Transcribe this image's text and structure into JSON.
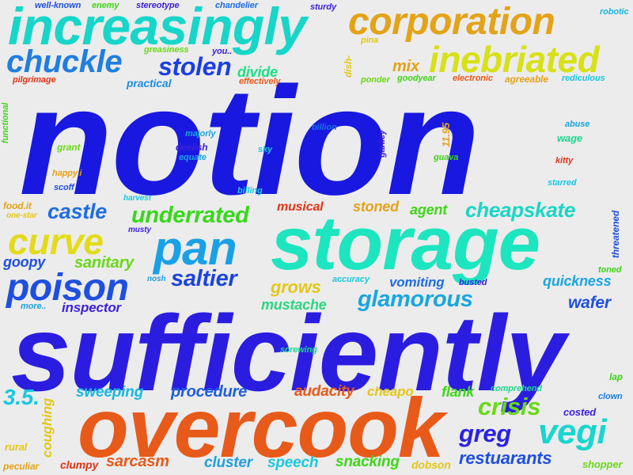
{
  "words": [
    {
      "text": "notion",
      "color": "#1818e0"
    },
    {
      "text": "sufficiently",
      "color": "#2a1de0"
    },
    {
      "text": "storage",
      "color": "#1de5bf"
    },
    {
      "text": "overcook",
      "color": "#e85a1a"
    },
    {
      "text": "increasingly",
      "color": "#17d6c9"
    },
    {
      "text": "corporation",
      "color": "#e3a318"
    },
    {
      "text": "inebriated",
      "color": "#d8e018"
    },
    {
      "text": "chuckle",
      "color": "#1f7ee0"
    },
    {
      "text": "stolen",
      "color": "#1c3fe0"
    },
    {
      "text": "pan",
      "color": "#1aa0e6"
    },
    {
      "text": "poison",
      "color": "#1f4fe0"
    },
    {
      "text": "curve",
      "color": "#e3db1a"
    },
    {
      "text": "underrated",
      "color": "#36d81a"
    },
    {
      "text": "castle",
      "color": "#1f6de0"
    },
    {
      "text": "cheapskate",
      "color": "#18d6c6"
    },
    {
      "text": "glamorous",
      "color": "#19a6e0"
    },
    {
      "text": "saltier",
      "color": "#1c44e0"
    },
    {
      "text": "vegi",
      "color": "#18d6cf"
    },
    {
      "text": "crisis",
      "color": "#6ad819"
    },
    {
      "text": "greg",
      "color": "#2a22e0"
    },
    {
      "text": "restuarants",
      "color": "#1f4fe0"
    },
    {
      "text": "procedure",
      "color": "#1f5fe0"
    },
    {
      "text": "sarcasm",
      "color": "#e85a1a"
    },
    {
      "text": "divide",
      "color": "#1cdf82"
    },
    {
      "text": "practical",
      "color": "#1f8ee0"
    },
    {
      "text": "mix",
      "color": "#e3a318"
    },
    {
      "text": "musical",
      "color": "#e03418"
    },
    {
      "text": "stoned",
      "color": "#e3a318"
    },
    {
      "text": "agent",
      "color": "#3fd61a"
    },
    {
      "text": "sanitary",
      "color": "#6ad819"
    },
    {
      "text": "goopy",
      "color": "#1f4fe0"
    },
    {
      "text": "grows",
      "color": "#e3c71a"
    },
    {
      "text": "mustache",
      "color": "#2bd680"
    },
    {
      "text": "inspector",
      "color": "#3f1fd8"
    },
    {
      "text": "vomiting",
      "color": "#1f6de0"
    },
    {
      "text": "quickness",
      "color": "#19a6e0"
    },
    {
      "text": "wafer",
      "color": "#1f4fe0"
    },
    {
      "text": "audacity",
      "color": "#e85a1a"
    },
    {
      "text": "sweeping",
      "color": "#19b8e0"
    },
    {
      "text": "cheapo",
      "color": "#e3c71a"
    },
    {
      "text": "flank",
      "color": "#3fd61a"
    },
    {
      "text": "cluster",
      "color": "#1fa0e0"
    },
    {
      "text": "speech",
      "color": "#19c8e0"
    },
    {
      "text": "snacking",
      "color": "#3fd61a"
    },
    {
      "text": "dobson",
      "color": "#e3c71a"
    },
    {
      "text": "clumpy",
      "color": "#e03418"
    },
    {
      "text": "rural",
      "color": "#e3c71a"
    },
    {
      "text": "peculiar",
      "color": "#e3a318"
    },
    {
      "text": "shopper",
      "color": "#6ad819"
    },
    {
      "text": "costed",
      "color": "#3f1fd8"
    },
    {
      "text": "clown",
      "color": "#1f7ee0"
    },
    {
      "text": "lap",
      "color": "#3fd61a"
    },
    {
      "text": "comprehend",
      "color": "#1cd68f"
    },
    {
      "text": "screwing",
      "color": "#1cd68f"
    },
    {
      "text": "3.5.",
      "color": "#19c8e0"
    },
    {
      "text": "coughing",
      "color": "#e3c71a"
    },
    {
      "text": "well-known",
      "color": "#1f4fe0"
    },
    {
      "text": "enemy",
      "color": "#3fd61a"
    },
    {
      "text": "stereotype",
      "color": "#3f1fd8"
    },
    {
      "text": "chandelier",
      "color": "#1f6de0"
    },
    {
      "text": "sturdy",
      "color": "#3f1fd8"
    },
    {
      "text": "robotic",
      "color": "#19b8e0"
    },
    {
      "text": "greasiness",
      "color": "#6ad819"
    },
    {
      "text": "you..",
      "color": "#3f1fd8"
    },
    {
      "text": "pina",
      "color": "#e3c71a"
    },
    {
      "text": "effectively",
      "color": "#e85a1a"
    },
    {
      "text": "pilgrimage",
      "color": "#e03418"
    },
    {
      "text": "ponder",
      "color": "#6ad819"
    },
    {
      "text": "goodyear",
      "color": "#3fd61a"
    },
    {
      "text": "electronic",
      "color": "#e85a1a"
    },
    {
      "text": "agreeable",
      "color": "#e3a318"
    },
    {
      "text": "rediculous",
      "color": "#19c8e0"
    },
    {
      "text": "dish-",
      "color": "#e3c71a"
    },
    {
      "text": "functional",
      "color": "#3fd61a"
    },
    {
      "text": "billion",
      "color": "#1f6de0"
    },
    {
      "text": "garlicy",
      "color": "#3f1fd8"
    },
    {
      "text": "11.95",
      "color": "#e3a318"
    },
    {
      "text": "abuse",
      "color": "#19a6e0"
    },
    {
      "text": "majorly",
      "color": "#19a6e0"
    },
    {
      "text": "deelish",
      "color": "#3f1fd8"
    },
    {
      "text": "equate",
      "color": "#19a6e0"
    },
    {
      "text": "sky",
      "color": "#19c8e0"
    },
    {
      "text": "grant",
      "color": "#6ad819"
    },
    {
      "text": "guava",
      "color": "#3fd61a"
    },
    {
      "text": "wage",
      "color": "#1cd68f"
    },
    {
      "text": "kitty",
      "color": "#e03418"
    },
    {
      "text": "happy.i",
      "color": "#e3a318"
    },
    {
      "text": "scoff",
      "color": "#1f4fe0"
    },
    {
      "text": "billing",
      "color": "#19c8e0"
    },
    {
      "text": "starred",
      "color": "#19c8e0"
    },
    {
      "text": "harvest",
      "color": "#19c8e0"
    },
    {
      "text": "food.it",
      "color": "#e3a318"
    },
    {
      "text": "one-star",
      "color": "#e3c71a"
    },
    {
      "text": "musty",
      "color": "#3f1fd8"
    },
    {
      "text": "threatened",
      "color": "#1f4fe0"
    },
    {
      "text": "toned",
      "color": "#3fd61a"
    },
    {
      "text": "nosh",
      "color": "#1fa0e0"
    },
    {
      "text": "accuracy",
      "color": "#19c8e0"
    },
    {
      "text": "busted",
      "color": "#3f1fd8"
    },
    {
      "text": "more..",
      "color": "#1fa0e0"
    }
  ]
}
